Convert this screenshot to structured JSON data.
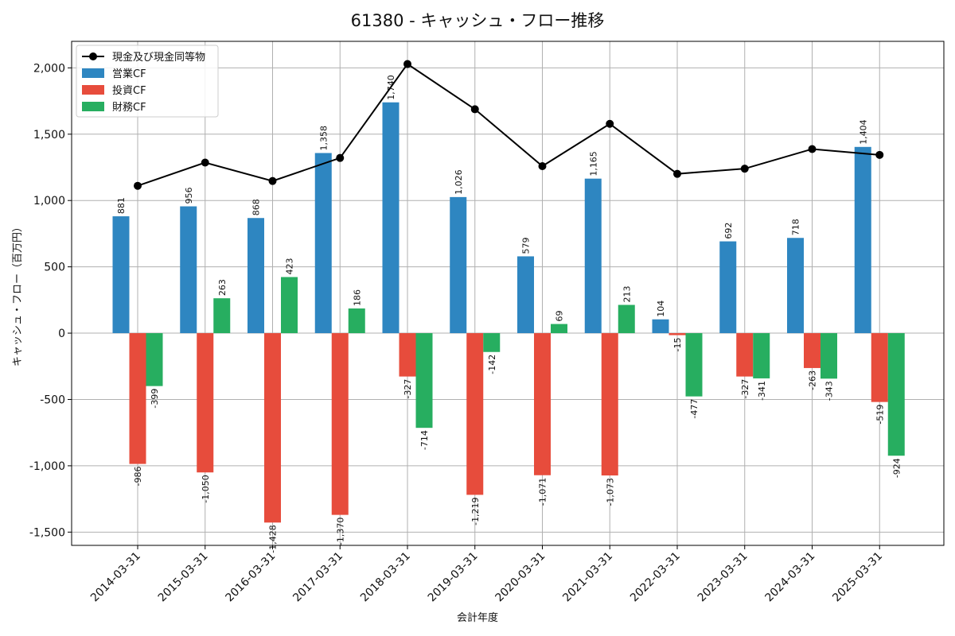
{
  "chart_data": {
    "type": "bar",
    "title": "61380 - キャッシュ・フロー推移",
    "xlabel": "会計年度",
    "ylabel": "キャッシュ・フロー（百万円）",
    "ylim": [
      -1600,
      2200
    ],
    "yticks": [
      -1500,
      -1000,
      -500,
      0,
      500,
      1000,
      1500,
      2000
    ],
    "ytick_labels": [
      "-1,500",
      "-1,000",
      "-500",
      "0",
      "500",
      "1,000",
      "1,500",
      "2,000"
    ],
    "grid": true,
    "legend_position": "top-left",
    "categories": [
      "2014-03-31",
      "2015-03-31",
      "2016-03-31",
      "2017-03-31",
      "2018-03-31",
      "2019-03-31",
      "2020-03-31",
      "2021-03-31",
      "2022-03-31",
      "2023-03-31",
      "2024-03-31",
      "2025-03-31"
    ],
    "series": [
      {
        "name": "営業CF",
        "kind": "bar",
        "color": "#2e86c1",
        "values": [
          881,
          956,
          868,
          1358,
          1740,
          1026,
          579,
          1165,
          104,
          692,
          718,
          1404
        ],
        "labels": [
          "881",
          "956",
          "868",
          "1,358",
          "1,740",
          "1,026",
          "579",
          "1,165",
          "104",
          "692",
          "718",
          "1,404"
        ]
      },
      {
        "name": "投資CF",
        "kind": "bar",
        "color": "#e74c3c",
        "values": [
          -986,
          -1050,
          -1428,
          -1370,
          -327,
          -1219,
          -1071,
          -1073,
          -15,
          -327,
          -263,
          -519
        ],
        "labels": [
          "-986",
          "-1,050",
          "-1,428",
          "-1,370",
          "-327",
          "-1,219",
          "-1,071",
          "-1,073",
          "-15",
          "-327",
          "-263",
          "-519"
        ]
      },
      {
        "name": "財務CF",
        "kind": "bar",
        "color": "#27ae60",
        "values": [
          -399,
          263,
          423,
          186,
          -714,
          -142,
          69,
          213,
          -477,
          -341,
          -343,
          -924
        ],
        "labels": [
          "-399",
          "263",
          "423",
          "186",
          "-714",
          "-142",
          "69",
          "213",
          "-477",
          "-341",
          "-343",
          "-924"
        ]
      },
      {
        "name": "現金及び現金同等物",
        "kind": "line",
        "color": "#000000",
        "values": [
          1111,
          1286,
          1147,
          1321,
          2029,
          1688,
          1259,
          1578,
          1201,
          1240,
          1388,
          1344
        ]
      }
    ]
  }
}
